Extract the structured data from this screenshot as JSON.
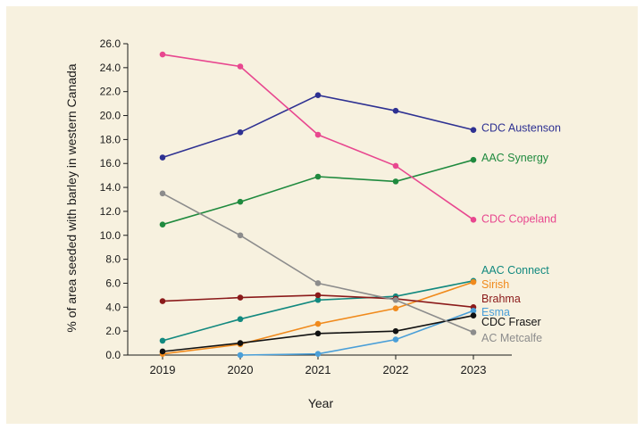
{
  "chart_data": {
    "type": "line",
    "title": "",
    "xlabel": "Year",
    "ylabel": "% of area seeded with barley in western Canada",
    "x": [
      2019,
      2020,
      2021,
      2022,
      2023
    ],
    "x_tick_labels": [
      "2019",
      "2020",
      "2021",
      "2022",
      "2023"
    ],
    "ylim": [
      0,
      26
    ],
    "y_tick_labels": [
      "0.0",
      "2.0",
      "4.0",
      "6.0",
      "8.0",
      "10.0",
      "12.0",
      "14.0",
      "16.0",
      "18.0",
      "20.0",
      "22.0",
      "24.0",
      "26.0"
    ],
    "grid": false,
    "legend": "direct labels at line ends",
    "series": [
      {
        "name": "CDC Austenson",
        "color": "#2e3192",
        "values": [
          16.5,
          18.6,
          21.7,
          20.4,
          18.8
        ]
      },
      {
        "name": "AAC Synergy",
        "color": "#1f8a3e",
        "values": [
          10.9,
          12.8,
          14.9,
          14.5,
          16.3
        ]
      },
      {
        "name": "CDC Copeland",
        "color": "#e8478f",
        "values": [
          25.1,
          24.1,
          18.4,
          15.8,
          11.3
        ]
      },
      {
        "name": "AAC Connect",
        "color": "#12897f",
        "values": [
          1.2,
          3.0,
          4.6,
          4.9,
          6.2
        ]
      },
      {
        "name": "Sirish",
        "color": "#f08a1c",
        "values": [
          0.1,
          0.9,
          2.6,
          3.9,
          6.1
        ]
      },
      {
        "name": "Brahma",
        "color": "#8b1a1a",
        "values": [
          4.5,
          4.8,
          5.0,
          4.7,
          4.0
        ]
      },
      {
        "name": "Esma",
        "color": "#4a9fd8",
        "values": [
          null,
          0.0,
          0.1,
          1.3,
          3.7
        ]
      },
      {
        "name": "CDC Fraser",
        "color": "#111111",
        "values": [
          0.3,
          1.0,
          1.8,
          2.0,
          3.3
        ]
      },
      {
        "name": "AC Metcalfe",
        "color": "#8c8c8c",
        "values": [
          13.5,
          10.0,
          6.0,
          4.6,
          1.9
        ]
      }
    ]
  }
}
